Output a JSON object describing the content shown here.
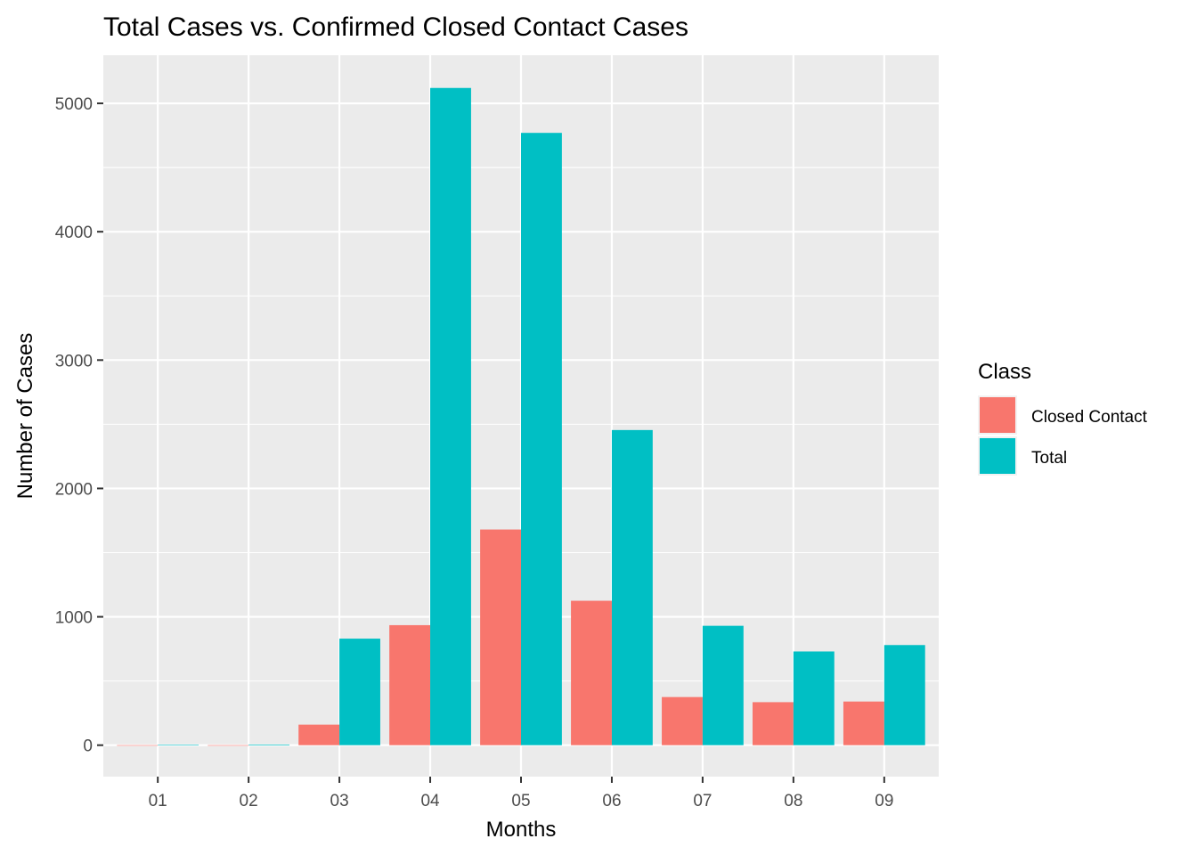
{
  "chart_data": {
    "type": "bar",
    "title": "Total Cases vs. Confirmed Closed Contact Cases",
    "xlabel": "Months",
    "ylabel": "Number of Cases",
    "categories": [
      "01",
      "02",
      "03",
      "04",
      "05",
      "06",
      "07",
      "08",
      "09"
    ],
    "series": [
      {
        "name": "Closed Contact",
        "color": "#f8766d",
        "values": [
          0,
          0,
          160,
          935,
          1680,
          1125,
          375,
          335,
          340
        ]
      },
      {
        "name": "Total",
        "color": "#00bfc4",
        "values": [
          3,
          5,
          830,
          5120,
          4770,
          2455,
          930,
          730,
          780
        ]
      }
    ],
    "ylim": [
      -245,
      5375
    ],
    "yticks": [
      0,
      1000,
      2000,
      3000,
      4000,
      5000
    ],
    "ytick_labels": [
      "0",
      "1000",
      "2000",
      "3000",
      "4000",
      "5000"
    ],
    "grid": true,
    "panel_background": "#ebebeb",
    "legend": {
      "title": "Class",
      "position": "right"
    }
  }
}
